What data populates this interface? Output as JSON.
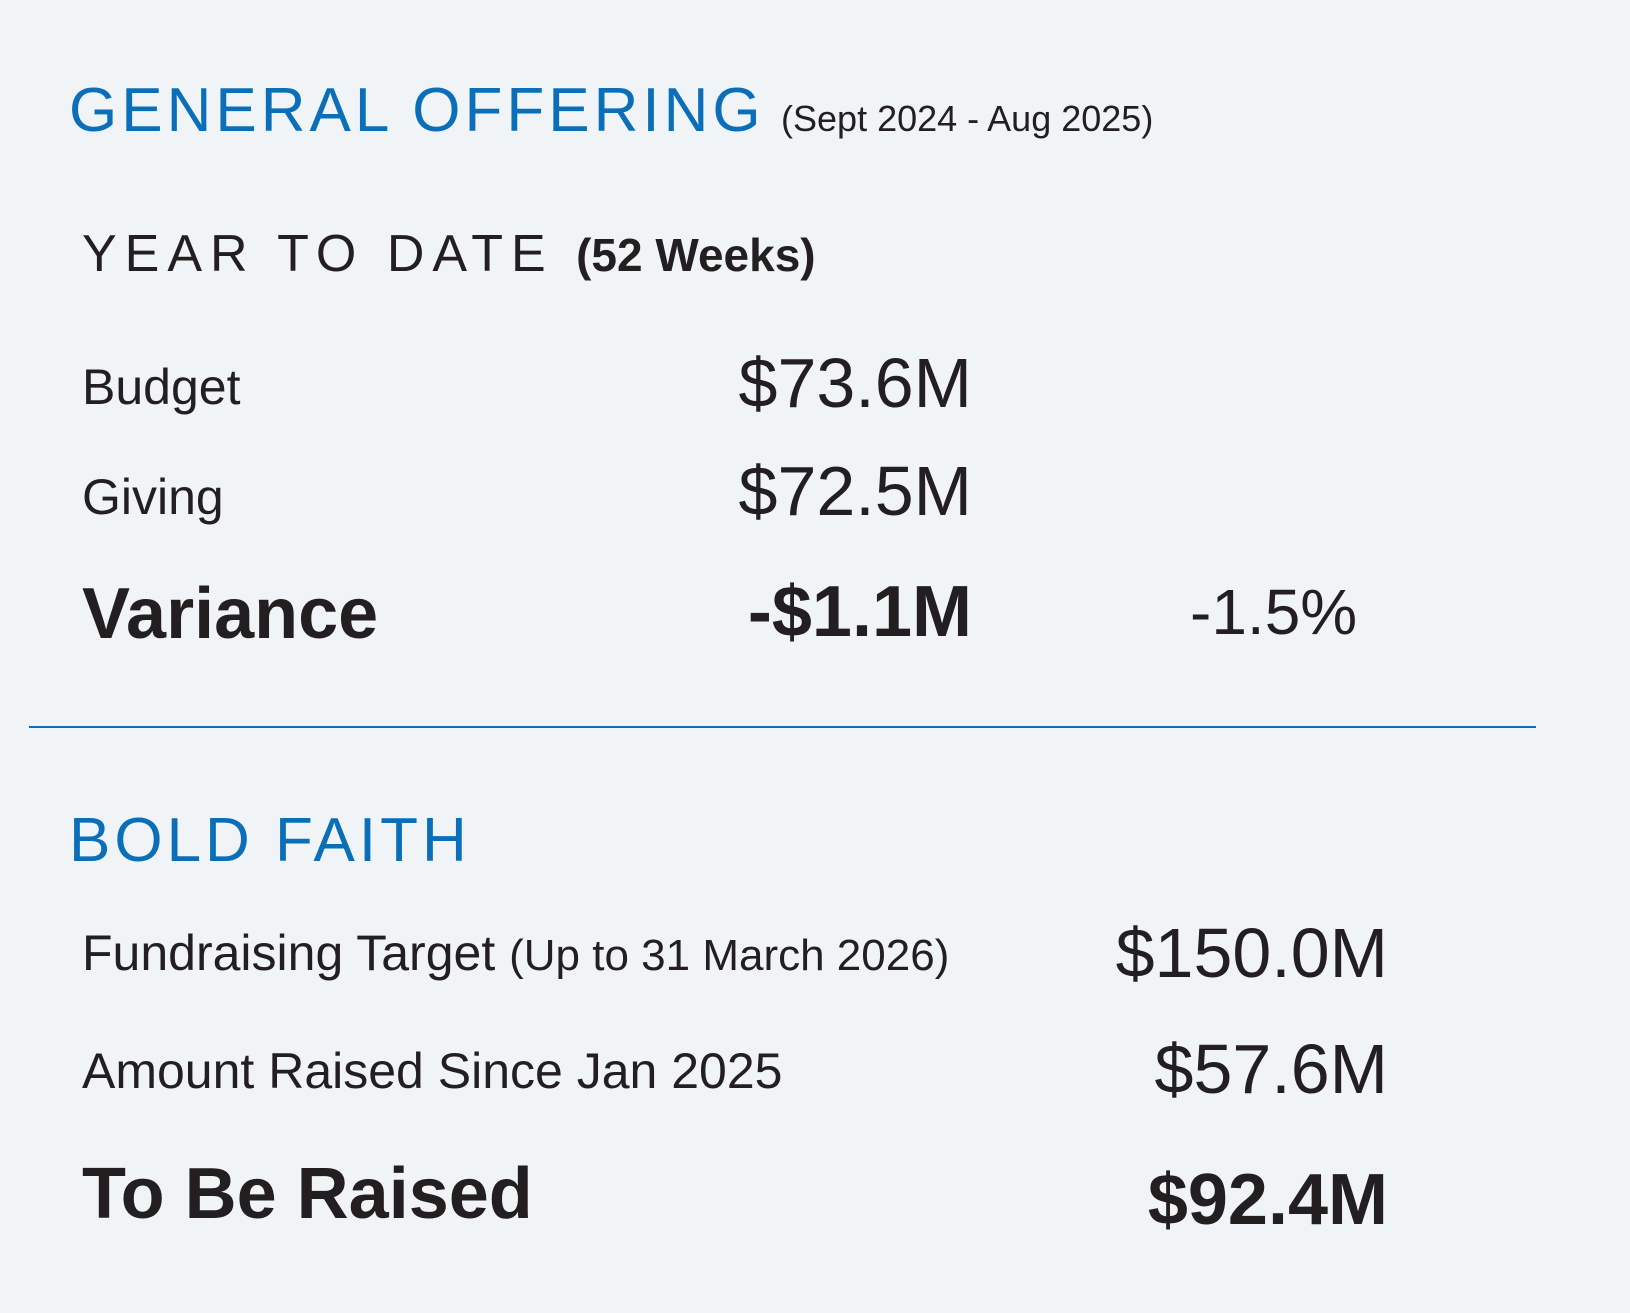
{
  "general_offering": {
    "title": "GENERAL OFFERING",
    "period": "(Sept 2024 - Aug 2025)",
    "ytd_label": "YEAR TO DATE",
    "ytd_weeks": "(52 Weeks)",
    "rows": [
      {
        "label": "Budget",
        "value": "$73.6M"
      },
      {
        "label": "Giving",
        "value": "$72.5M"
      }
    ],
    "variance": {
      "label": "Variance",
      "value": "-$1.1M",
      "percent": "-1.5%"
    }
  },
  "bold_faith": {
    "title": "BOLD FAITH",
    "target": {
      "label": "Fundraising Target",
      "note": "(Up to 31 March 2026)",
      "value": "$150.0M"
    },
    "raised": {
      "label": "Amount Raised Since Jan 2025",
      "value": "$57.6M"
    },
    "remaining": {
      "label": "To Be Raised",
      "value": "$92.4M"
    }
  },
  "colors": {
    "accent": "#0a6fb8",
    "text": "#231f20",
    "background": "#f0f4f6"
  }
}
